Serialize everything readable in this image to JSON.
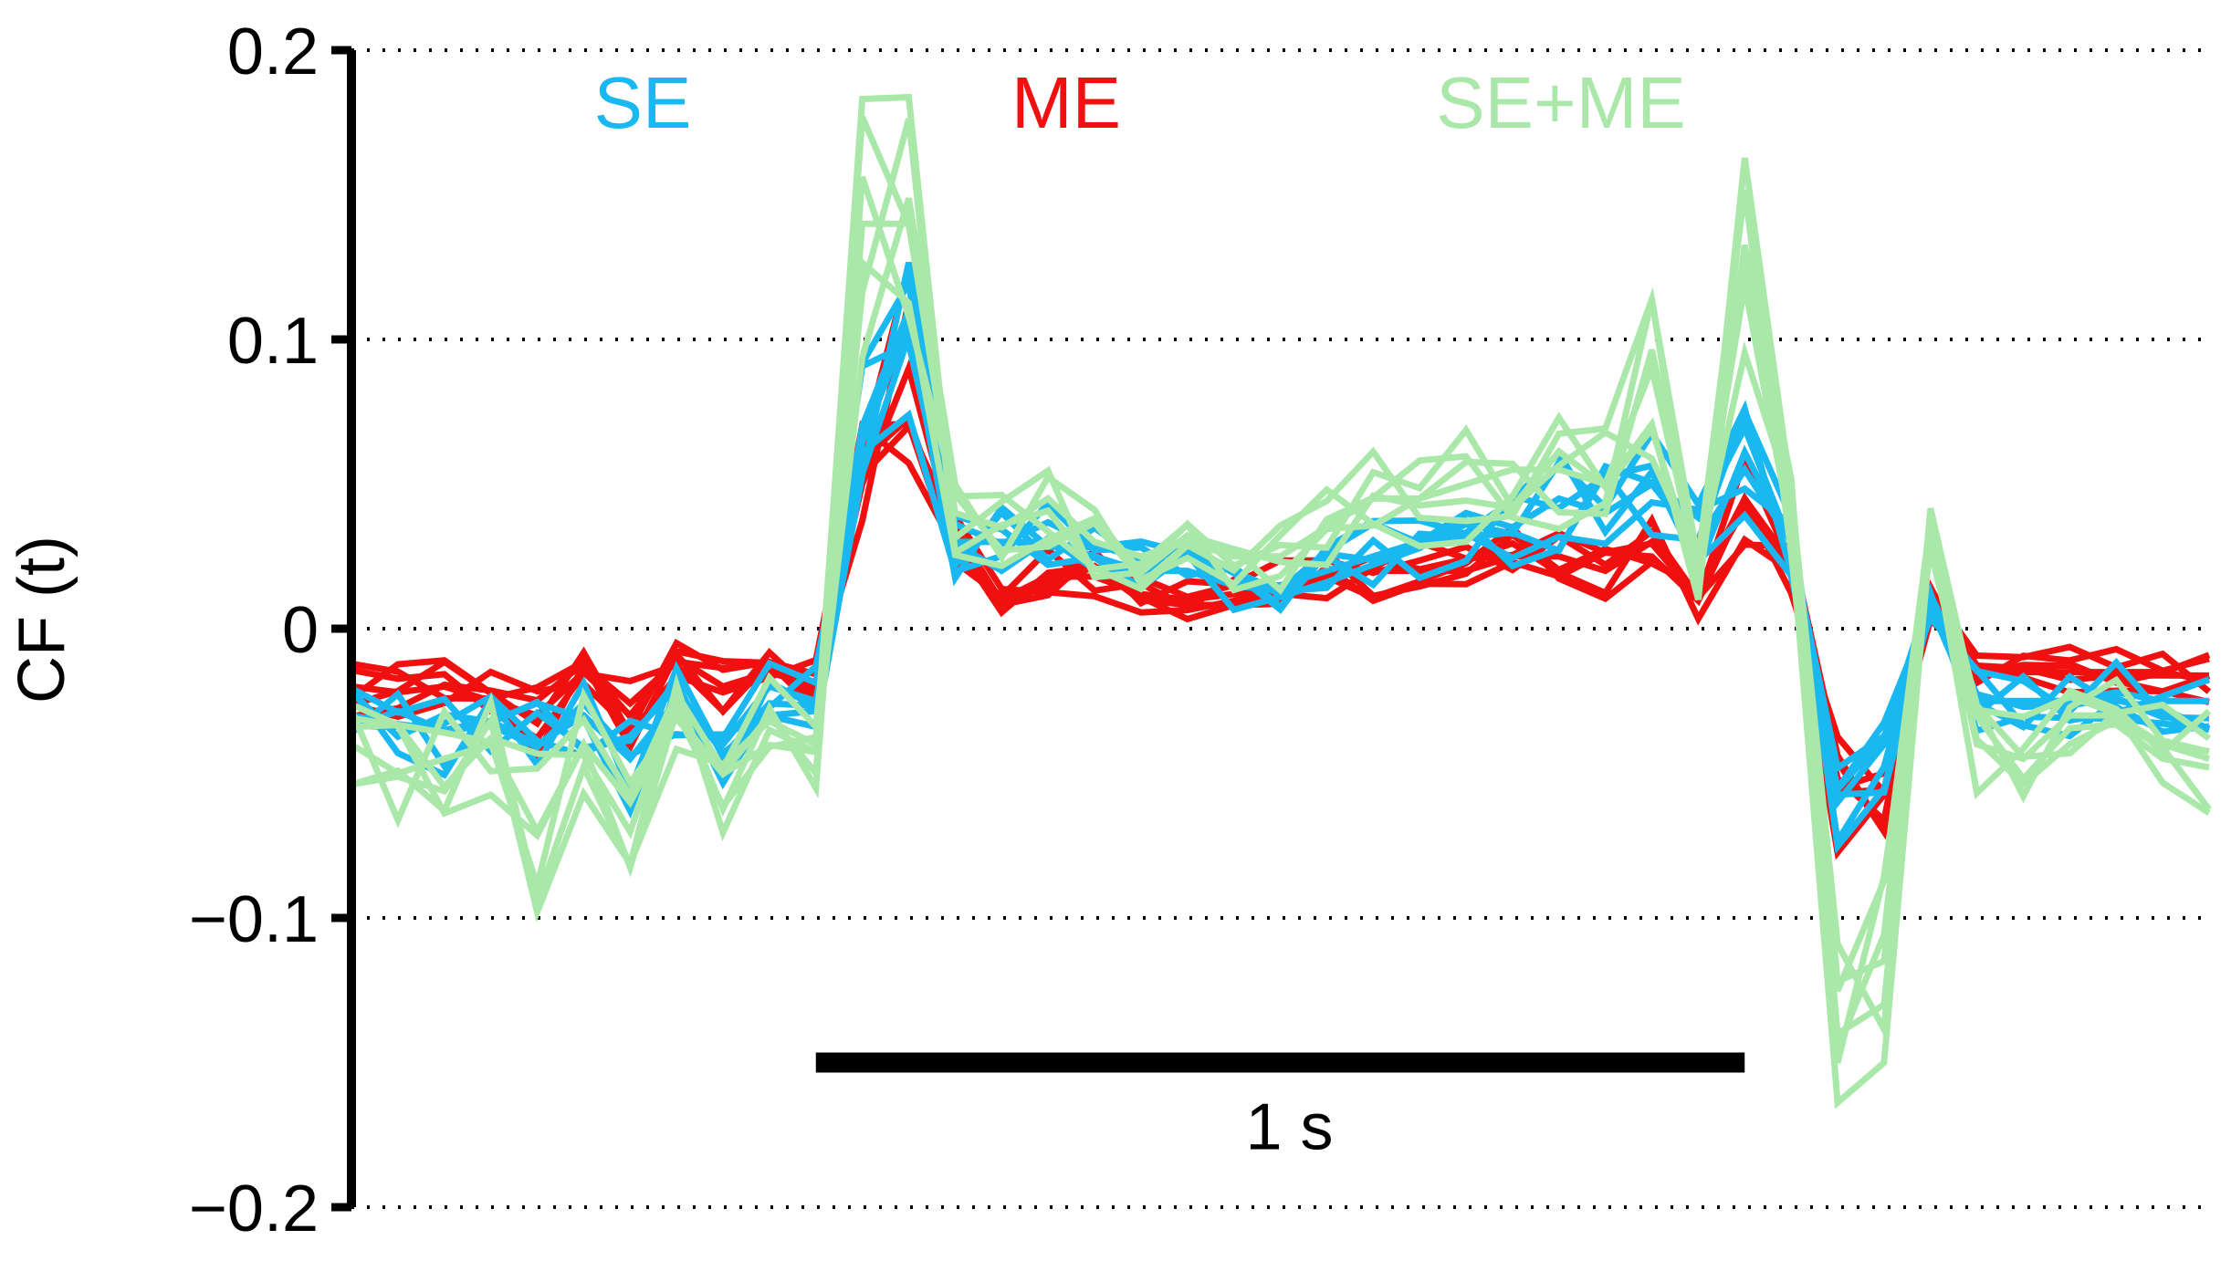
{
  "chart_data": {
    "type": "line",
    "title": "",
    "xlabel": "",
    "ylabel": "CF (t)",
    "ylim": [
      -0.2,
      0.2
    ],
    "yticks": [
      0.2,
      0.1,
      0,
      -0.1,
      -0.2
    ],
    "ytick_labels": [
      "0.2",
      "0.1",
      "0",
      "−0.1",
      "−0.2"
    ],
    "grid": "horizontal dotted",
    "legend": {
      "placement": "top",
      "entries": [
        "SE",
        "ME",
        "SE+ME"
      ]
    },
    "scale_bar": {
      "label": "1 s",
      "x_start": 2.5,
      "x_end": 7.5,
      "y": -0.15
    },
    "x_range": [
      0.0,
      10.0
    ],
    "series": [
      {
        "name": "SE",
        "color": "#1ab8f0",
        "x": [
          0.0,
          0.25,
          0.5,
          0.75,
          1.0,
          1.25,
          1.5,
          1.75,
          2.0,
          2.25,
          2.5,
          2.75,
          3.0,
          3.25,
          3.5,
          3.75,
          4.0,
          4.25,
          4.5,
          4.75,
          5.0,
          5.25,
          5.5,
          5.75,
          6.0,
          6.25,
          6.5,
          6.75,
          7.0,
          7.25,
          7.5,
          7.75,
          8.0,
          8.25,
          8.5,
          8.75,
          9.0,
          9.25,
          9.5,
          9.75,
          10.0
        ],
        "y": [
          -0.03,
          -0.033,
          -0.035,
          -0.032,
          -0.04,
          -0.03,
          -0.045,
          -0.025,
          -0.04,
          -0.02,
          -0.025,
          0.07,
          0.11,
          0.03,
          0.03,
          0.03,
          0.025,
          0.02,
          0.02,
          0.015,
          0.015,
          0.02,
          0.025,
          0.03,
          0.04,
          0.035,
          0.045,
          0.04,
          0.05,
          0.03,
          0.055,
          0.03,
          -0.06,
          -0.04,
          0.01,
          -0.025,
          -0.025,
          -0.025,
          -0.022,
          -0.025,
          -0.025
        ],
        "variants": 7
      },
      {
        "name": "ME",
        "color": "#f01010",
        "x": [
          0.0,
          0.25,
          0.5,
          0.75,
          1.0,
          1.25,
          1.5,
          1.75,
          2.0,
          2.25,
          2.5,
          2.75,
          3.0,
          3.25,
          3.5,
          3.75,
          4.0,
          4.25,
          4.5,
          4.75,
          5.0,
          5.25,
          5.5,
          5.75,
          6.0,
          6.25,
          6.5,
          6.75,
          7.0,
          7.25,
          7.5,
          7.75,
          8.0,
          8.25,
          8.5,
          8.75,
          9.0,
          9.25,
          9.5,
          9.75,
          10.0
        ],
        "y": [
          -0.02,
          -0.022,
          -0.02,
          -0.025,
          -0.03,
          -0.015,
          -0.03,
          -0.01,
          -0.02,
          -0.015,
          -0.02,
          0.05,
          0.09,
          0.03,
          0.01,
          0.018,
          0.018,
          0.012,
          0.01,
          0.012,
          0.015,
          0.018,
          0.02,
          0.02,
          0.02,
          0.025,
          0.025,
          0.02,
          0.03,
          0.01,
          0.045,
          0.02,
          -0.055,
          -0.05,
          0.01,
          -0.015,
          -0.015,
          -0.015,
          -0.015,
          -0.015,
          -0.018
        ],
        "variants": 7
      },
      {
        "name": "SE+ME",
        "color": "#a9e8a9",
        "x": [
          0.0,
          0.25,
          0.5,
          0.75,
          1.0,
          1.25,
          1.5,
          1.75,
          2.0,
          2.25,
          2.5,
          2.75,
          3.0,
          3.25,
          3.5,
          3.75,
          4.0,
          4.25,
          4.5,
          4.75,
          5.0,
          5.25,
          5.5,
          5.75,
          6.0,
          6.25,
          6.5,
          6.75,
          7.0,
          7.25,
          7.5,
          7.75,
          8.0,
          8.25,
          8.5,
          8.75,
          9.0,
          9.25,
          9.5,
          9.75,
          10.0
        ],
        "y": [
          -0.04,
          -0.05,
          -0.045,
          -0.04,
          -0.07,
          -0.04,
          -0.06,
          -0.03,
          -0.05,
          -0.03,
          -0.05,
          0.14,
          0.14,
          0.04,
          0.035,
          0.045,
          0.03,
          0.025,
          0.03,
          0.025,
          0.025,
          0.035,
          0.045,
          0.045,
          0.05,
          0.055,
          0.055,
          0.05,
          0.09,
          0.02,
          0.12,
          0.04,
          -0.14,
          -0.13,
          0.03,
          -0.04,
          -0.045,
          -0.03,
          -0.03,
          -0.04,
          -0.045
        ],
        "variants": 7
      }
    ]
  }
}
